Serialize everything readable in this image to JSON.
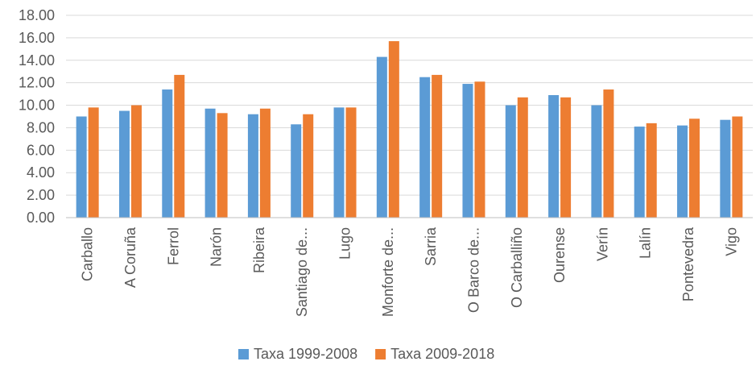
{
  "chart_data": {
    "type": "bar",
    "title": "",
    "xlabel": "",
    "ylabel": "",
    "ylim": [
      0,
      18
    ],
    "y_ticks": [
      "0.00",
      "2.00",
      "4.00",
      "6.00",
      "8.00",
      "10.00",
      "12.00",
      "14.00",
      "16.00",
      "18.00"
    ],
    "grid": true,
    "legend_position": "bottom",
    "categories": [
      "Carballo",
      "A Coruña",
      "Ferrol",
      "Narón",
      "Ribeira",
      "Santiago de...",
      "Lugo",
      "Monforte de...",
      "Sarria",
      "O Barco de...",
      "O Carballiño",
      "Ourense",
      "Verín",
      "Lalín",
      "Pontevedra",
      "Vigo"
    ],
    "series": [
      {
        "name": "Taxa 1999-2008",
        "color": "#5b9bd5",
        "values": [
          9.0,
          9.5,
          11.4,
          9.7,
          9.2,
          8.3,
          9.8,
          14.3,
          12.5,
          11.9,
          10.0,
          10.9,
          10.0,
          8.1,
          8.2,
          8.7
        ]
      },
      {
        "name": "Taxa 2009-2018",
        "color": "#ed7d31",
        "values": [
          9.8,
          10.0,
          12.7,
          9.3,
          9.7,
          9.2,
          9.8,
          15.7,
          12.7,
          12.1,
          10.7,
          10.7,
          11.4,
          8.4,
          8.8,
          9.0
        ]
      }
    ]
  }
}
